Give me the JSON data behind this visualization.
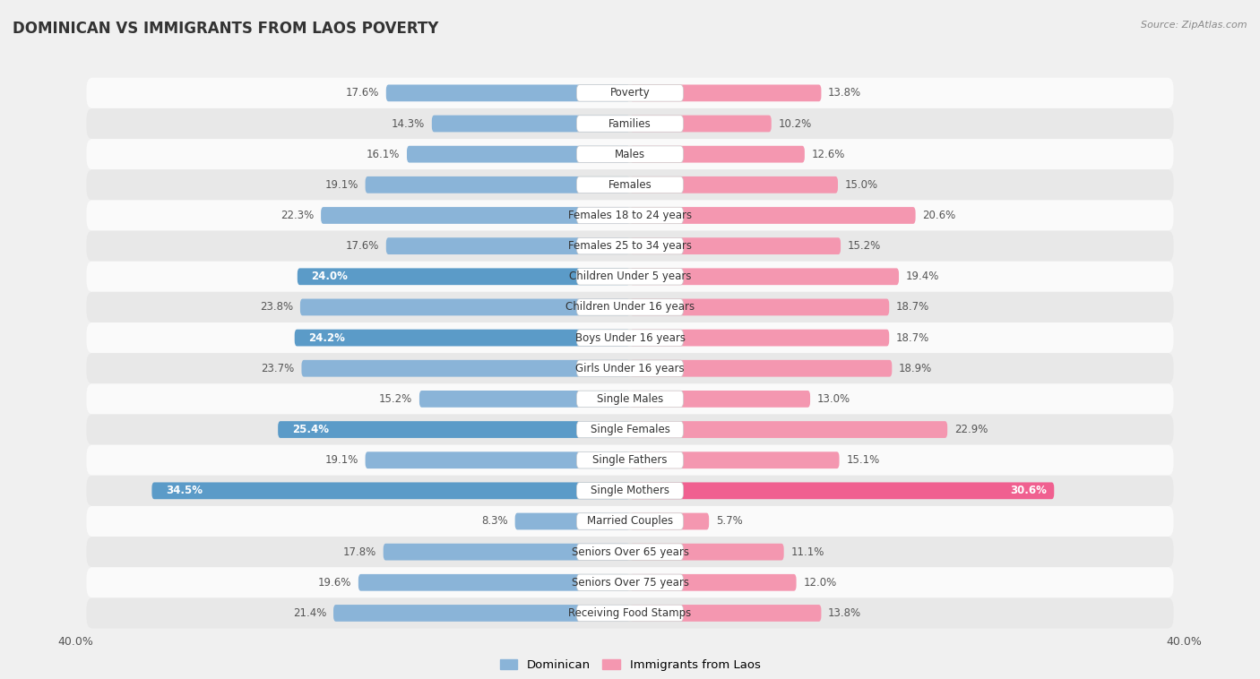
{
  "title": "DOMINICAN VS IMMIGRANTS FROM LAOS POVERTY",
  "source": "Source: ZipAtlas.com",
  "categories": [
    "Poverty",
    "Families",
    "Males",
    "Females",
    "Females 18 to 24 years",
    "Females 25 to 34 years",
    "Children Under 5 years",
    "Children Under 16 years",
    "Boys Under 16 years",
    "Girls Under 16 years",
    "Single Males",
    "Single Females",
    "Single Fathers",
    "Single Mothers",
    "Married Couples",
    "Seniors Over 65 years",
    "Seniors Over 75 years",
    "Receiving Food Stamps"
  ],
  "dominican": [
    17.6,
    14.3,
    16.1,
    19.1,
    22.3,
    17.6,
    24.0,
    23.8,
    24.2,
    23.7,
    15.2,
    25.4,
    19.1,
    34.5,
    8.3,
    17.8,
    19.6,
    21.4
  ],
  "laos": [
    13.8,
    10.2,
    12.6,
    15.0,
    20.6,
    15.2,
    19.4,
    18.7,
    18.7,
    18.9,
    13.0,
    22.9,
    15.1,
    30.6,
    5.7,
    11.1,
    12.0,
    13.8
  ],
  "dominican_color": "#8ab4d8",
  "laos_color": "#f497b0",
  "dominican_highlight_indices": [
    6,
    8,
    11,
    13
  ],
  "laos_highlight_indices": [
    13
  ],
  "dominican_highlight_color": "#5b9bc8",
  "laos_highlight_color": "#f06090",
  "background_color": "#f0f0f0",
  "row_odd_color": "#fafafa",
  "row_even_color": "#e8e8e8",
  "xlim": 40.0,
  "bar_height": 0.55,
  "label_fontsize": 8.5,
  "title_fontsize": 12,
  "source_fontsize": 8,
  "legend_dominican": "Dominican",
  "legend_laos": "Immigrants from Laos"
}
